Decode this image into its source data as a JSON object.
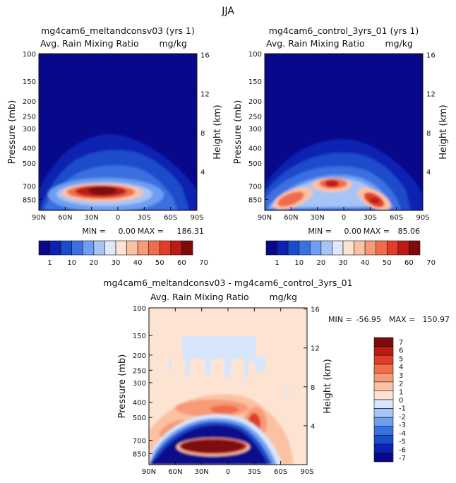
{
  "figure": {
    "title": "JJA"
  },
  "colors": {
    "seq": [
      "#08088a",
      "#0c22b0",
      "#1a4ccc",
      "#3a70e0",
      "#6e9ef0",
      "#a6c4f6",
      "#dde8fb",
      "#fde4d2",
      "#fbc1a3",
      "#f79a76",
      "#f06c4b",
      "#e03e26",
      "#bc1a12",
      "#7e0a0a"
    ],
    "div": [
      "#08088a",
      "#0c22b0",
      "#1a4ccc",
      "#3a70e0",
      "#6e9ef0",
      "#a6c4f6",
      "#d8e6fb",
      "#fde4d2",
      "#fbc1a3",
      "#f79a76",
      "#f06c4b",
      "#e03e26",
      "#bc1a12",
      "#7e0a0a"
    ]
  },
  "chart_data": [
    {
      "type": "heatmap",
      "id": "p1",
      "title": "mg4cam6_meltandconsv03 (yrs 1)",
      "subtitle_left": "Avg. Rain Mixing Ratio",
      "subtitle_right": "mg/kg",
      "xlabel": "",
      "ylabel": "Pressure (mb)",
      "y2label": "Height (km)",
      "x_ticks": [
        "90N",
        "60N",
        "30N",
        "0",
        "30S",
        "60S",
        "90S"
      ],
      "y_ticks": [
        "100",
        "150",
        "200",
        "250",
        "300",
        "400",
        "500",
        "700",
        "850"
      ],
      "y2_ticks": [
        "4",
        "8",
        "12",
        "16"
      ],
      "ylim": [
        1000,
        100
      ],
      "min_label": "MIN =",
      "min": "0.00",
      "max_label": "MAX =",
      "max": "186.31",
      "colorbar_labels": [
        "1",
        "10",
        "20",
        "30",
        "40",
        "50",
        "60",
        "70"
      ]
    },
    {
      "type": "heatmap",
      "id": "p2",
      "title": "mg4cam6_control_3yrs_01 (yrs 1)",
      "subtitle_left": "Avg. Rain Mixing Ratio",
      "subtitle_right": "mg/kg",
      "xlabel": "",
      "ylabel": "Pressure (mb)",
      "y2label": "Height (km)",
      "x_ticks": [
        "90N",
        "60N",
        "30N",
        "0",
        "30S",
        "60S",
        "90S"
      ],
      "y_ticks": [
        "100",
        "150",
        "200",
        "250",
        "300",
        "400",
        "500",
        "700",
        "850"
      ],
      "y2_ticks": [
        "4",
        "8",
        "12",
        "16"
      ],
      "ylim": [
        1000,
        100
      ],
      "min_label": "MIN =",
      "min": "0.00",
      "max_label": "MAX =",
      "max": "85.06",
      "colorbar_labels": [
        "1",
        "10",
        "20",
        "30",
        "40",
        "50",
        "60",
        "70"
      ]
    },
    {
      "type": "heatmap",
      "id": "p3",
      "title": "mg4cam6_meltandconsv03 - mg4cam6_control_3yrs_01",
      "subtitle_left": "Avg. Rain Mixing Ratio",
      "subtitle_right": "mg/kg",
      "xlabel": "",
      "ylabel": "Pressure (mb)",
      "y2label": "Height (km)",
      "x_ticks": [
        "90N",
        "60N",
        "30N",
        "0",
        "30S",
        "60S",
        "90S"
      ],
      "y_ticks": [
        "100",
        "150",
        "200",
        "250",
        "300",
        "400",
        "500",
        "700",
        "850"
      ],
      "y2_ticks": [
        "4",
        "8",
        "12",
        "16"
      ],
      "ylim": [
        1000,
        100
      ],
      "min_label": "MIN =",
      "min": "-56.95",
      "max_label": "MAX =",
      "max": "150.97",
      "colorbar_labels": [
        "7",
        "6",
        "5",
        "4",
        "3",
        "2",
        "1",
        "0",
        "-1",
        "-2",
        "-3",
        "-4",
        "-5",
        "-6",
        "-7"
      ]
    }
  ]
}
